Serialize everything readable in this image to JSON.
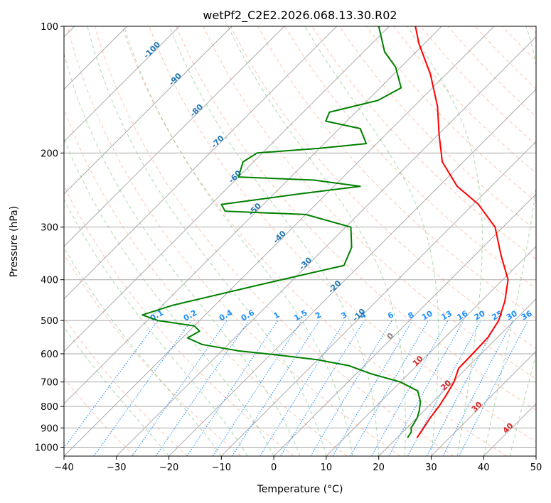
{
  "chart_data": {
    "type": "line",
    "title": "wetPf2_C2E2.2026.068.13.30.R02",
    "xlabel": "Temperature (°C)",
    "ylabel": "Pressure (hPa)",
    "xlim": [
      -40,
      50
    ],
    "ylim": [
      1050,
      100
    ],
    "y_scale": "log",
    "skew": "skew-T log-P",
    "grid": true,
    "x_ticks": [
      -40,
      -30,
      -20,
      -10,
      0,
      10,
      20,
      30,
      40,
      50
    ],
    "y_ticks": [
      100,
      200,
      300,
      400,
      500,
      600,
      700,
      800,
      900,
      1000
    ],
    "series": [
      {
        "color": "#ff0000",
        "points": [
          [
            23.8,
            950
          ],
          [
            23.2,
            900
          ],
          [
            22.5,
            850
          ],
          [
            22.0,
            800
          ],
          [
            21.2,
            750
          ],
          [
            20.2,
            700
          ],
          [
            18.5,
            650
          ],
          [
            18.4,
            600
          ],
          [
            18.2,
            550
          ],
          [
            17.0,
            500
          ],
          [
            14.5,
            450
          ],
          [
            11.0,
            400
          ],
          [
            5.0,
            350
          ],
          [
            -1.5,
            300
          ],
          [
            -9.0,
            265
          ],
          [
            -16.5,
            240
          ],
          [
            -24.0,
            210
          ],
          [
            -30.0,
            180
          ],
          [
            -35.5,
            155
          ],
          [
            -43.0,
            130
          ],
          [
            -51.0,
            110
          ],
          [
            -55.0,
            100
          ]
        ]
      },
      {
        "color": "#008000",
        "points": [
          [
            22.0,
            950
          ],
          [
            21.6,
            920
          ],
          [
            20.8,
            900
          ],
          [
            20.5,
            880
          ],
          [
            20.0,
            850
          ],
          [
            19.1,
            820
          ],
          [
            17.6,
            780
          ],
          [
            15.0,
            735
          ],
          [
            10.0,
            700
          ],
          [
            3.0,
            670
          ],
          [
            -3.0,
            640
          ],
          [
            -10.0,
            620
          ],
          [
            -18.0,
            605
          ],
          [
            -27.0,
            590
          ],
          [
            -35.0,
            570
          ],
          [
            -39.0,
            550
          ],
          [
            -38.0,
            530
          ],
          [
            -40.0,
            515
          ],
          [
            -48.0,
            500
          ],
          [
            -52.0,
            485
          ],
          [
            -48.0,
            460
          ],
          [
            -43.0,
            440
          ],
          [
            -35.0,
            410
          ],
          [
            -23.0,
            370
          ],
          [
            -25.0,
            335
          ],
          [
            -29.0,
            300
          ],
          [
            -40.0,
            280
          ],
          [
            -56.0,
            275
          ],
          [
            -58.0,
            265
          ],
          [
            -45.0,
            250
          ],
          [
            -35.0,
            240
          ],
          [
            -45.0,
            232
          ],
          [
            -60.0,
            228
          ],
          [
            -62.0,
            210
          ],
          [
            -61.0,
            200
          ],
          [
            -50.0,
            195
          ],
          [
            -42.0,
            190
          ],
          [
            -46.0,
            175
          ],
          [
            -54.0,
            168
          ],
          [
            -55.0,
            160
          ],
          [
            -48.0,
            150
          ],
          [
            -46.0,
            140
          ],
          [
            -51.0,
            125
          ],
          [
            -56.0,
            115
          ],
          [
            -62.0,
            100
          ]
        ]
      }
    ],
    "dry_adiabats": [
      -30,
      -20,
      -10,
      0,
      10,
      20,
      30,
      40,
      50,
      60,
      70,
      80,
      90,
      100,
      110,
      120,
      130,
      140,
      150,
      160,
      170,
      180,
      190,
      200,
      210,
      220,
      230,
      240,
      250
    ],
    "moist_adiabats": [
      -20,
      -10,
      -5,
      0,
      5,
      10,
      15,
      20,
      25,
      30,
      35,
      40,
      45
    ],
    "isotherm_labels": [
      {
        "text": "-100",
        "t": -100,
        "p": 115
      },
      {
        "text": "-90",
        "t": -90,
        "p": 135
      },
      {
        "text": "-80",
        "t": -80,
        "p": 160
      },
      {
        "text": "-70",
        "t": -70,
        "p": 190
      },
      {
        "text": "-60",
        "t": -60,
        "p": 230
      },
      {
        "text": "-50",
        "t": -50,
        "p": 275
      },
      {
        "text": "-40",
        "t": -40,
        "p": 320
      },
      {
        "text": "-30",
        "t": -30,
        "p": 370
      },
      {
        "text": "-20",
        "t": -20,
        "p": 420
      },
      {
        "text": "-10",
        "t": -10,
        "p": 490
      }
    ],
    "mixing_ratios": [
      0.1,
      0.2,
      0.4,
      0.6,
      1,
      1.5,
      2,
      3,
      4,
      6,
      8,
      10,
      13,
      16,
      20,
      25,
      30,
      36
    ],
    "mixing_ratio_label_pressure": 500,
    "mixing_ratio_labels": [
      "0.1",
      "0.2",
      "0.4",
      "0.6",
      "1",
      "1.5",
      "2",
      "3",
      "4",
      "6",
      "8",
      "10",
      "13",
      "16",
      "20",
      "25",
      "30",
      "36"
    ],
    "hot_isotherm_labels": [
      {
        "text": "0",
        "t": 0,
        "p": 550,
        "color": "#808080"
      },
      {
        "text": "10",
        "t": 10,
        "p": 630,
        "color": "#d62728"
      },
      {
        "text": "20",
        "t": 20,
        "p": 720,
        "color": "#d62728"
      },
      {
        "text": "30",
        "t": 30,
        "p": 810,
        "color": "#d62728"
      },
      {
        "text": "40",
        "t": 40,
        "p": 910,
        "color": "#d62728"
      }
    ],
    "colors": {
      "temperature": "#ff0000",
      "dewpoint": "#008000",
      "dry_adiabat": "#ff7f50",
      "moist_adiabat": "#2ca02c",
      "isotherm": "#808080",
      "isobar": "#a9a9a9",
      "mixing_ratio": "#1e90ff",
      "isotherm_label": "#1f77b4",
      "special_curve": "#d2b48c"
    }
  }
}
